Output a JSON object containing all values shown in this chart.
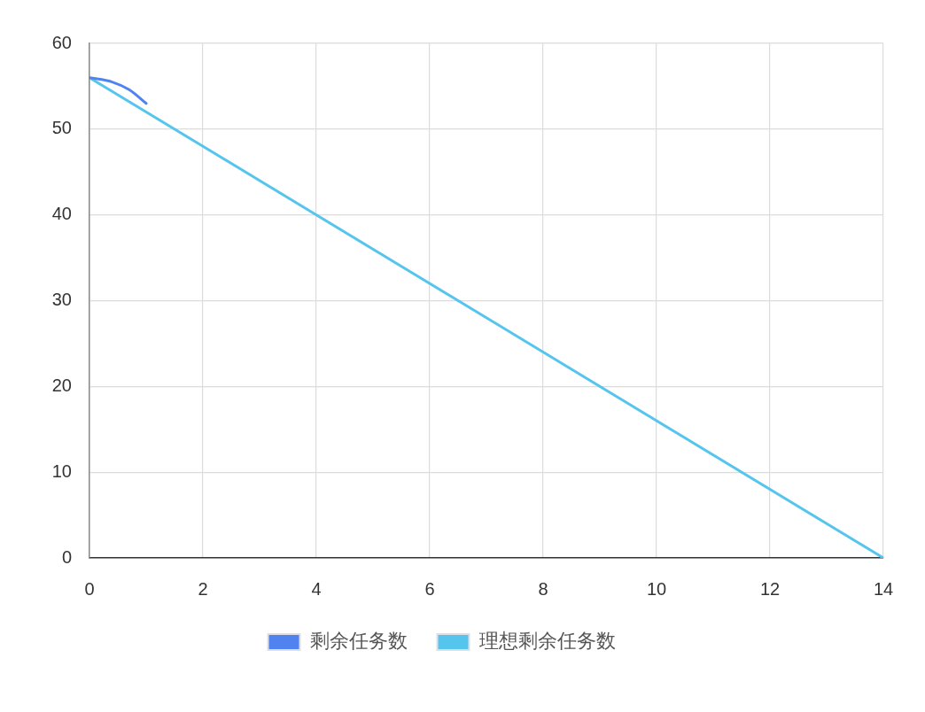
{
  "chart_data": {
    "type": "line",
    "series": [
      {
        "name": "剩余任务数",
        "color": "#5183f0",
        "x": [
          0,
          0.4,
          0.7,
          1
        ],
        "values": [
          56,
          55.5,
          54.6,
          53
        ]
      },
      {
        "name": "理想剩余任务数",
        "color": "#56c5ee",
        "x": [
          0,
          14
        ],
        "values": [
          56,
          0
        ]
      }
    ],
    "xlim": [
      0,
      14
    ],
    "xticks": [
      0,
      2,
      4,
      6,
      8,
      10,
      12,
      14
    ],
    "ylim": [
      0,
      60
    ],
    "yticks": [
      0,
      10,
      20,
      30,
      40,
      50,
      60
    ],
    "grid": true,
    "legend": "bottom",
    "marker": "none",
    "line_style": "solid"
  }
}
